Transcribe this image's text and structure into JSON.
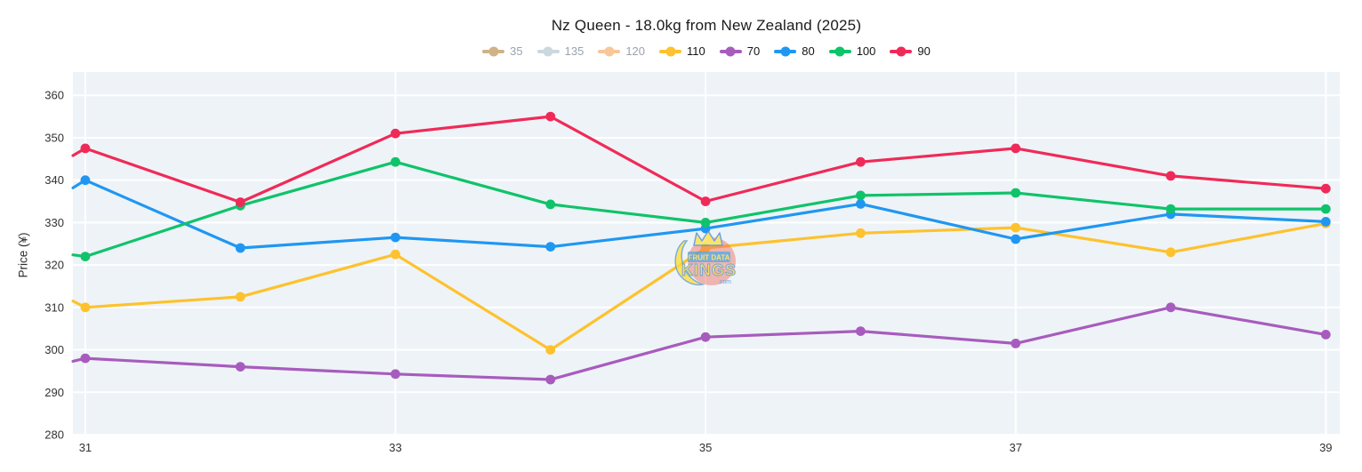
{
  "title": "Nz Queen - 18.0kg from New Zealand (2025)",
  "legend": {
    "items": [
      {
        "label": "35",
        "color": "#cfb287",
        "disabled": true
      },
      {
        "label": "135",
        "color": "#cdd7de",
        "disabled": true
      },
      {
        "label": "120",
        "color": "#f7c79a",
        "disabled": true
      },
      {
        "label": "110",
        "color": "#fdc22d",
        "disabled": false
      },
      {
        "label": "70",
        "color": "#a75cbd",
        "disabled": false
      },
      {
        "label": "80",
        "color": "#1f97f2",
        "disabled": false
      },
      {
        "label": "100",
        "color": "#0fc36a",
        "disabled": false
      },
      {
        "label": "90",
        "color": "#f02a58",
        "disabled": false
      }
    ]
  },
  "chart_data": {
    "type": "line",
    "title": "Nz Queen - 18.0kg from New Zealand (2025)",
    "xlabel": "",
    "ylabel": "Price (¥)",
    "x": [
      31,
      32,
      33,
      34,
      35,
      36,
      37,
      38,
      39
    ],
    "xticks": [
      31,
      33,
      35,
      37,
      39
    ],
    "yticks": [
      280,
      290,
      300,
      310,
      320,
      330,
      340,
      350,
      360
    ],
    "xlim": [
      30.92,
      39.09
    ],
    "ylim": [
      280,
      365.5
    ],
    "grid": true,
    "legend_position": "top",
    "plot_bg": "#eef3f7",
    "grid_color": "#ffffff",
    "series": [
      {
        "name": "110",
        "color": "#fdc22d",
        "lead_in_value": 311.5,
        "values": [
          310,
          312.5,
          322.5,
          300,
          324,
          327.5,
          328.8,
          323,
          329.8
        ]
      },
      {
        "name": "70",
        "color": "#a75cbd",
        "lead_in_value": 297.3,
        "values": [
          298,
          296,
          294.3,
          293,
          303,
          304.4,
          301.5,
          310,
          303.6
        ]
      },
      {
        "name": "80",
        "color": "#1f97f2",
        "lead_in_value": 338.2,
        "values": [
          340,
          324,
          326.5,
          324.3,
          328.6,
          334.4,
          326.1,
          332,
          330.2
        ]
      },
      {
        "name": "100",
        "color": "#0fc36a",
        "lead_in_value": 322.4,
        "values": [
          322,
          334,
          344.3,
          334.3,
          330,
          336.4,
          337,
          333.2,
          333.2
        ]
      },
      {
        "name": "90",
        "color": "#f02a58",
        "lead_in_value": 345.8,
        "values": [
          347.5,
          334.8,
          351,
          355,
          335,
          344.3,
          347.5,
          341,
          338
        ]
      }
    ],
    "hidden_series": [
      "35",
      "135",
      "120"
    ]
  },
  "watermark": {
    "line1": "FRUIT DATA",
    "line2": "KINGS",
    "line3": ".com"
  }
}
